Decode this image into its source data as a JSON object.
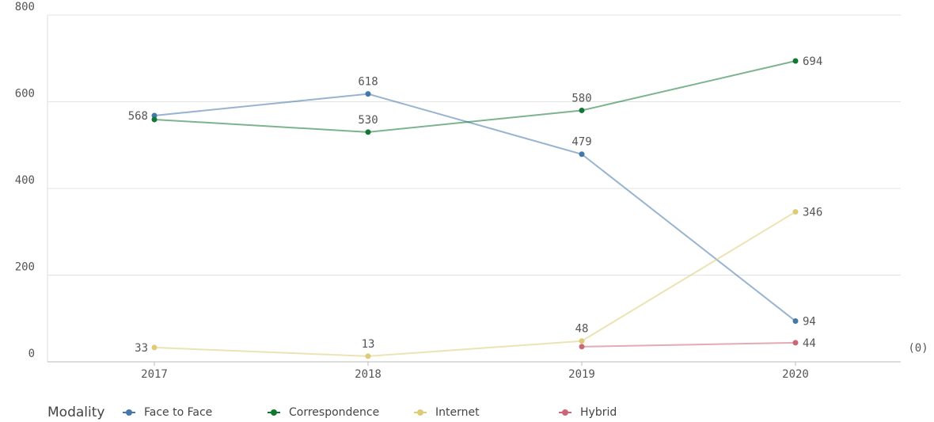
{
  "chart_data": {
    "type": "line",
    "categories": [
      "2017",
      "2018",
      "2019",
      "2020"
    ],
    "series": [
      {
        "name": "Face to Face",
        "color": "#4477aa",
        "values": [
          568,
          618,
          479,
          94
        ]
      },
      {
        "name": "Correspondence",
        "color": "#117733",
        "values": [
          559,
          530,
          580,
          694
        ],
        "value_labels": [
          null,
          "530",
          "580",
          "694"
        ]
      },
      {
        "name": "Internet",
        "color": "#ddcc77",
        "values": [
          33,
          13,
          48,
          346
        ]
      },
      {
        "name": "Hybrid",
        "color": "#cc6677",
        "values": [
          null,
          null,
          35,
          44
        ],
        "value_labels": [
          null,
          null,
          null,
          "44"
        ]
      }
    ],
    "ylim": [
      0,
      800
    ],
    "yticks": [
      0,
      200,
      400,
      600,
      800
    ],
    "grid": true,
    "legend_title": "Modality",
    "legend": "bottom-left",
    "annotation": "(0)"
  }
}
